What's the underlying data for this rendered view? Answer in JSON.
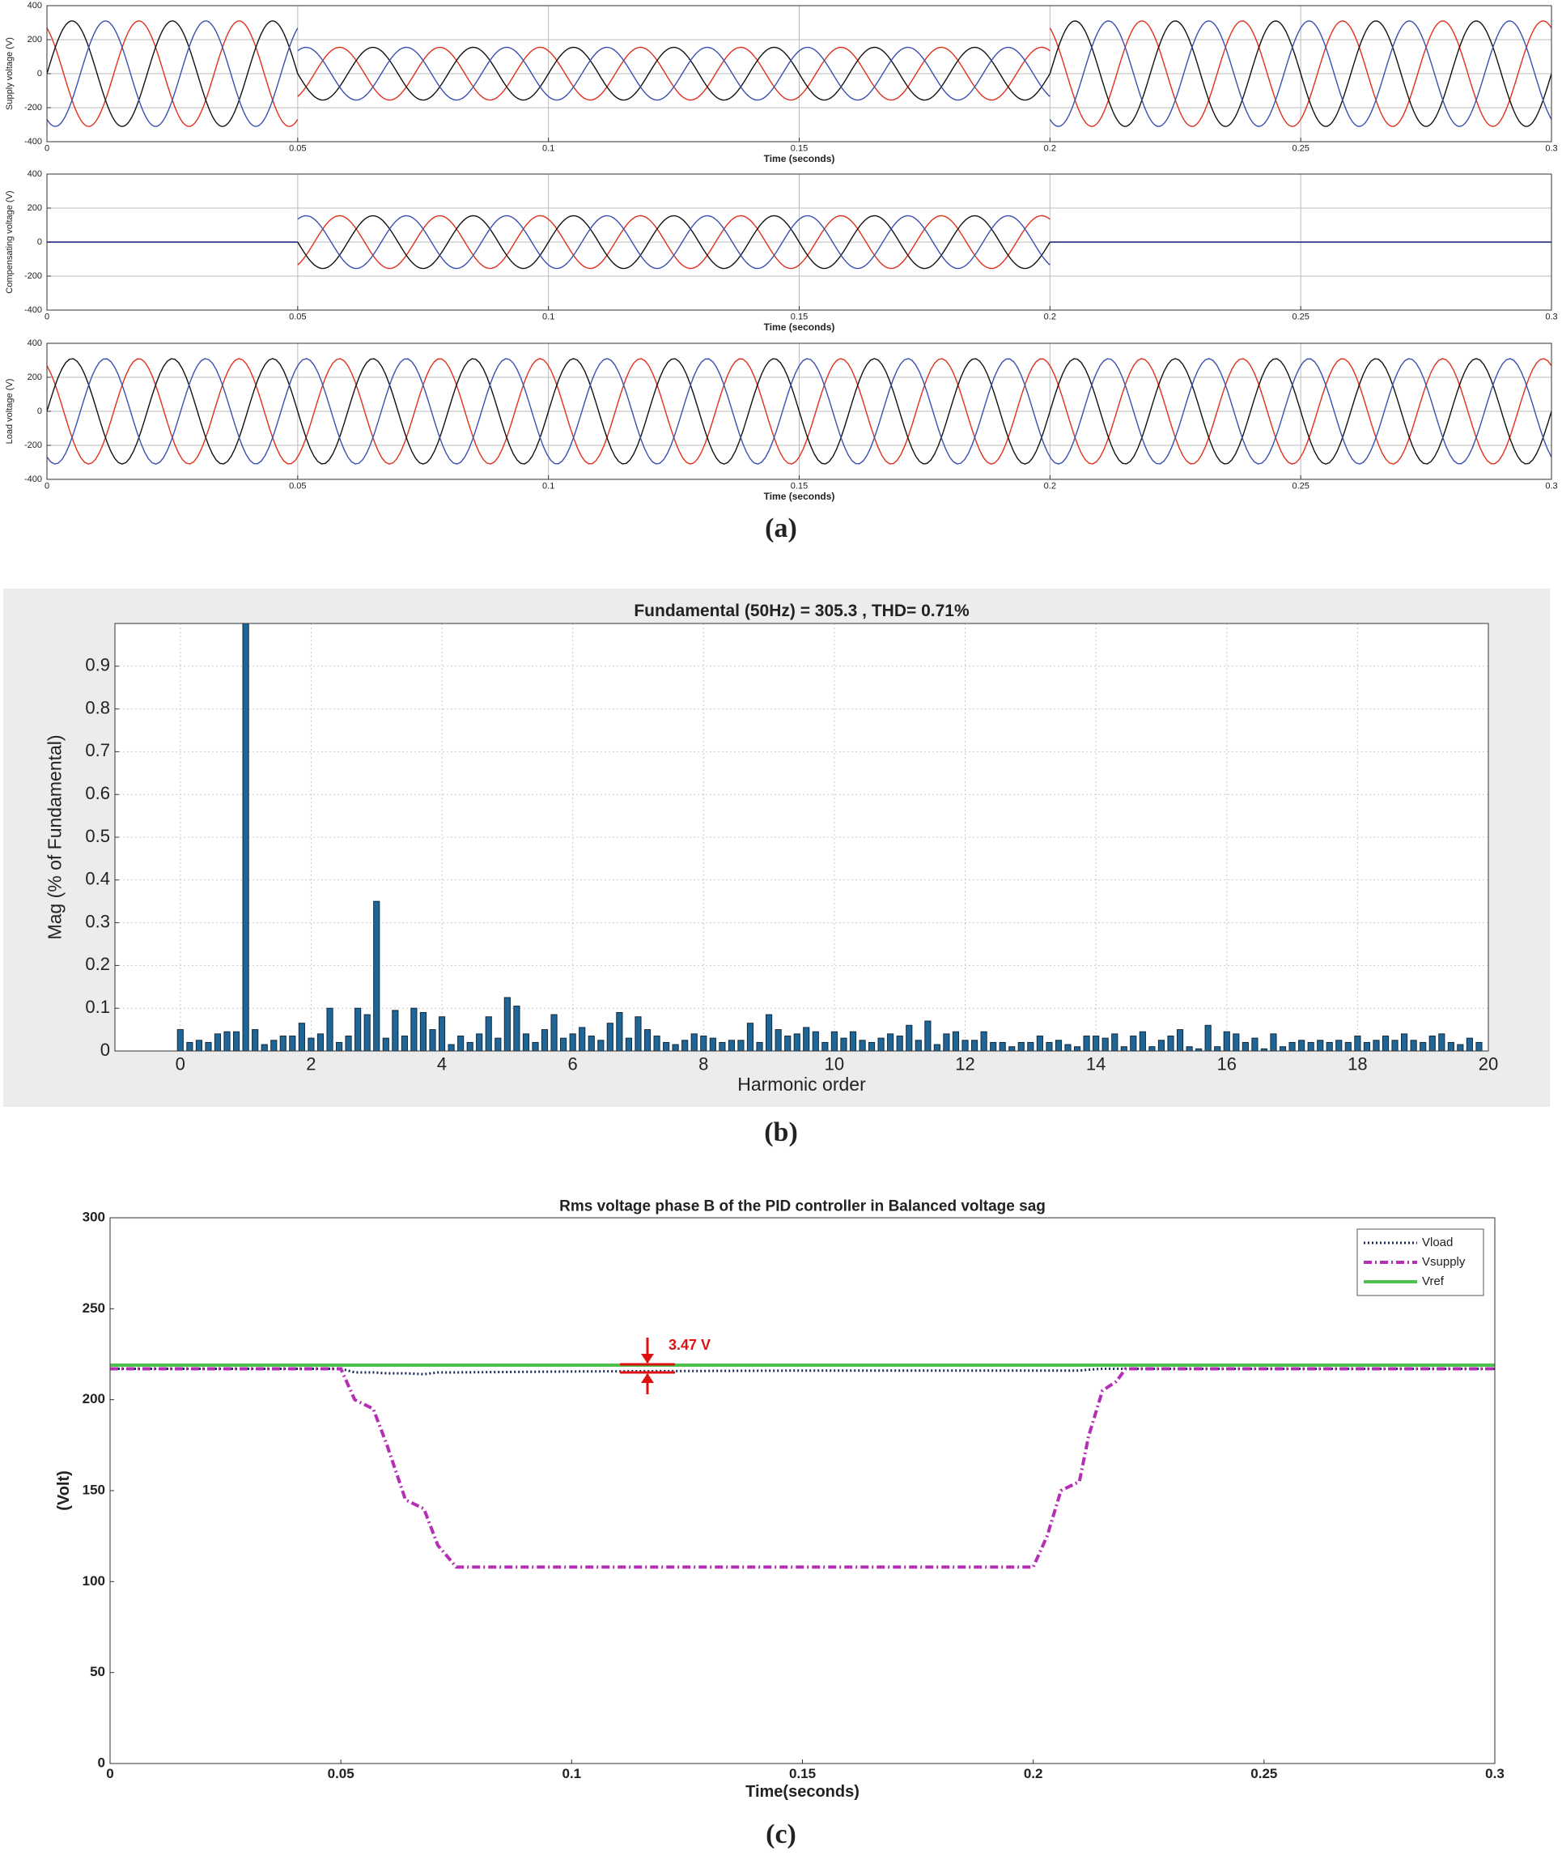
{
  "panel_labels": [
    "(a)",
    "(b)",
    "(c)"
  ],
  "chart_data": [
    {
      "type": "sine",
      "ylabel": "Supply voltage (V)",
      "xlabel": "Time (seconds)",
      "frequency": 50,
      "xlim": [
        0,
        0.3
      ],
      "ylim": [
        -400,
        400
      ],
      "xticks": [
        0,
        0.05,
        0.1,
        0.15,
        0.2,
        0.25,
        0.3
      ],
      "yticks": [
        -400,
        -200,
        0,
        200,
        400
      ],
      "grid": true,
      "breaks": [
        0,
        0.05,
        0.2,
        0.3
      ],
      "series": [
        {
          "color": "#e0301e",
          "phase": 120,
          "amplitudes": [
            310,
            155,
            310
          ]
        },
        {
          "color": "#111111",
          "phase": 0,
          "amplitudes": [
            310,
            155,
            310
          ]
        },
        {
          "color": "#3a4fb0",
          "phase": -120,
          "amplitudes": [
            310,
            155,
            310
          ]
        }
      ]
    },
    {
      "type": "sine",
      "ylabel": "Compensating voltage (V)",
      "xlabel": "Time (seconds)",
      "frequency": 50,
      "xlim": [
        0,
        0.3
      ],
      "ylim": [
        -400,
        400
      ],
      "xticks": [
        0,
        0.05,
        0.1,
        0.15,
        0.2,
        0.25,
        0.3
      ],
      "yticks": [
        -400,
        -200,
        0,
        200,
        400
      ],
      "grid": true,
      "breaks": [
        0,
        0.05,
        0.2,
        0.3
      ],
      "series": [
        {
          "color": "#e0301e",
          "phase": 120,
          "amplitudes": [
            0,
            155,
            0
          ]
        },
        {
          "color": "#111111",
          "phase": 0,
          "amplitudes": [
            0,
            155,
            0
          ]
        },
        {
          "color": "#3a4fb0",
          "phase": -120,
          "amplitudes": [
            0,
            155,
            0
          ]
        }
      ]
    },
    {
      "type": "sine",
      "ylabel": "Load voltage (V)",
      "xlabel": "Time (seconds)",
      "frequency": 50,
      "xlim": [
        0,
        0.3
      ],
      "ylim": [
        -400,
        400
      ],
      "xticks": [
        0,
        0.05,
        0.1,
        0.15,
        0.2,
        0.25,
        0.3
      ],
      "yticks": [
        -400,
        -200,
        0,
        200,
        400
      ],
      "grid": true,
      "breaks": [
        0,
        0.3
      ],
      "series": [
        {
          "color": "#e0301e",
          "phase": 120,
          "amplitudes": [
            310
          ]
        },
        {
          "color": "#111111",
          "phase": 0,
          "amplitudes": [
            310
          ]
        },
        {
          "color": "#3a4fb0",
          "phase": -120,
          "amplitudes": [
            310
          ]
        }
      ]
    },
    {
      "type": "bar",
      "title": "Fundamental (50Hz) = 305.3 , THD= 0.71%",
      "xlabel": "Harmonic order",
      "ylabel": "Mag (% of Fundamental)",
      "xlim": [
        -1,
        20
      ],
      "ylim": [
        0,
        1
      ],
      "xticks": [
        0,
        2,
        4,
        6,
        8,
        10,
        12,
        14,
        16,
        18,
        20
      ],
      "yticks": [
        0,
        0.1,
        0.2,
        0.3,
        0.4,
        0.5,
        0.6,
        0.7,
        0.8,
        0.9
      ],
      "grid": true,
      "color": "#1f6596",
      "x": [
        0,
        0.143,
        0.286,
        0.429,
        0.571,
        0.714,
        0.857,
        1,
        1.143,
        1.286,
        1.429,
        1.571,
        1.714,
        1.857,
        2,
        2.143,
        2.286,
        2.429,
        2.571,
        2.714,
        2.857,
        3,
        3.143,
        3.286,
        3.429,
        3.571,
        3.714,
        3.857,
        4,
        4.143,
        4.286,
        4.429,
        4.571,
        4.714,
        4.857,
        5,
        5.143,
        5.286,
        5.429,
        5.571,
        5.714,
        5.857,
        6,
        6.143,
        6.286,
        6.429,
        6.571,
        6.714,
        6.857,
        7,
        7.143,
        7.286,
        7.429,
        7.571,
        7.714,
        7.857,
        8,
        8.143,
        8.286,
        8.429,
        8.571,
        8.714,
        8.857,
        9,
        9.143,
        9.286,
        9.429,
        9.571,
        9.714,
        9.857,
        10,
        10.143,
        10.286,
        10.429,
        10.571,
        10.714,
        10.857,
        11,
        11.143,
        11.286,
        11.429,
        11.571,
        11.714,
        11.857,
        12,
        12.143,
        12.286,
        12.429,
        12.571,
        12.714,
        12.857,
        13,
        13.143,
        13.286,
        13.429,
        13.571,
        13.714,
        13.857,
        14,
        14.143,
        14.286,
        14.429,
        14.571,
        14.714,
        14.857,
        15,
        15.143,
        15.286,
        15.429,
        15.571,
        15.714,
        15.857,
        16,
        16.143,
        16.286,
        16.429,
        16.571,
        16.714,
        16.857,
        17,
        17.143,
        17.286,
        17.429,
        17.571,
        17.714,
        17.857,
        18,
        18.143,
        18.286,
        18.429,
        18.571,
        18.714,
        18.857,
        19,
        19.143,
        19.286,
        19.429,
        19.571,
        19.714,
        19.857
      ],
      "values": [
        0.05,
        0.02,
        0.025,
        0.02,
        0.04,
        0.045,
        0.045,
        1,
        0.05,
        0.015,
        0.025,
        0.035,
        0.035,
        0.065,
        0.03,
        0.04,
        0.1,
        0.02,
        0.035,
        0.1,
        0.085,
        0.35,
        0.03,
        0.095,
        0.035,
        0.1,
        0.09,
        0.05,
        0.08,
        0.015,
        0.035,
        0.02,
        0.04,
        0.08,
        0.03,
        0.125,
        0.105,
        0.04,
        0.02,
        0.05,
        0.085,
        0.03,
        0.04,
        0.055,
        0.035,
        0.025,
        0.065,
        0.09,
        0.03,
        0.08,
        0.05,
        0.035,
        0.02,
        0.015,
        0.025,
        0.04,
        0.035,
        0.03,
        0.02,
        0.025,
        0.025,
        0.065,
        0.02,
        0.085,
        0.05,
        0.035,
        0.04,
        0.055,
        0.045,
        0.02,
        0.045,
        0.03,
        0.045,
        0.025,
        0.02,
        0.03,
        0.04,
        0.035,
        0.06,
        0.025,
        0.07,
        0.015,
        0.04,
        0.045,
        0.025,
        0.025,
        0.045,
        0.02,
        0.02,
        0.01,
        0.02,
        0.02,
        0.035,
        0.02,
        0.025,
        0.015,
        0.01,
        0.035,
        0.035,
        0.03,
        0.04,
        0.01,
        0.035,
        0.045,
        0.01,
        0.025,
        0.035,
        0.05,
        0.01,
        0.005,
        0.06,
        0.01,
        0.045,
        0.04,
        0.02,
        0.03,
        0.005,
        0.04,
        0.01,
        0.02,
        0.025,
        0.02,
        0.025,
        0.02,
        0.025,
        0.02,
        0.035,
        0.02,
        0.025,
        0.035,
        0.025,
        0.04,
        0.025,
        0.02,
        0.035,
        0.04,
        0.02,
        0.015,
        0.03,
        0.02
      ]
    },
    {
      "type": "line",
      "title": "Rms voltage phase B of the PID controller in Balanced voltage sag",
      "xlabel": "Time(seconds)",
      "ylabel": "(Volt)",
      "xlim": [
        0,
        0.3
      ],
      "ylim": [
        0,
        300
      ],
      "xticks": [
        0,
        0.05,
        0.1,
        0.15,
        0.2,
        0.25,
        0.3
      ],
      "yticks": [
        0,
        50,
        100,
        150,
        200,
        250,
        300
      ],
      "grid": false,
      "legend": "upper right",
      "annotation": "3.47 V",
      "x": [
        0,
        0.05,
        0.053,
        0.057,
        0.06,
        0.064,
        0.068,
        0.071,
        0.075,
        0.1,
        0.15,
        0.2,
        0.203,
        0.206,
        0.21,
        0.212,
        0.215,
        0.218,
        0.22,
        0.25,
        0.3
      ],
      "series": [
        {
          "name": "Vload",
          "color": "#1a2a5a",
          "style": "dotted",
          "values": [
            217,
            217,
            215,
            215,
            214.5,
            214.5,
            214,
            215,
            215,
            215.5,
            216,
            216,
            216,
            216,
            216,
            216.5,
            217,
            217,
            217,
            217,
            217
          ]
        },
        {
          "name": "Vsupply",
          "color": "#b52fb5",
          "style": "dashdot",
          "values": [
            217,
            217,
            200,
            195,
            175,
            145,
            140,
            120,
            108,
            108,
            108,
            108,
            125,
            150,
            155,
            180,
            205,
            210,
            217,
            217,
            217
          ]
        },
        {
          "name": "Vref",
          "color": "#4cc04c",
          "style": "solid",
          "values": [
            219,
            219,
            219,
            219,
            219,
            219,
            219,
            219,
            219,
            219,
            219,
            219,
            219,
            219,
            219,
            219,
            219,
            219,
            219,
            219,
            219
          ]
        }
      ]
    }
  ]
}
